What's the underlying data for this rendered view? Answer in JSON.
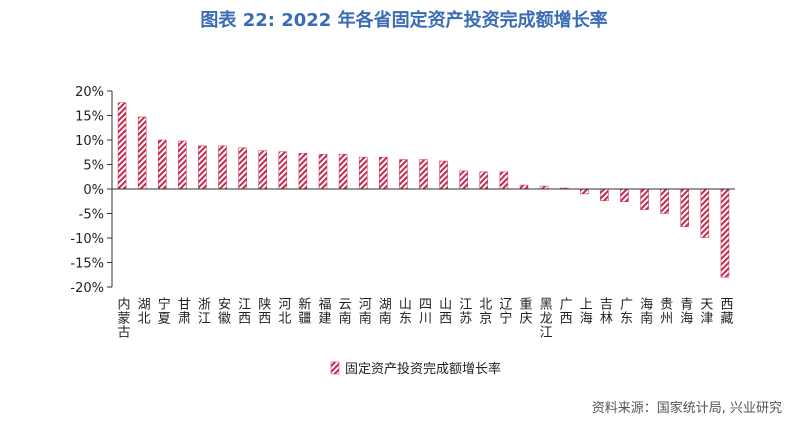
{
  "chart_data": {
    "type": "bar",
    "title": "图表 22: 2022 年各省固定资产投资完成额增长率",
    "source": "资料来源：国家统计局, 兴业研究",
    "categories": [
      "内蒙古",
      "湖北",
      "宁夏",
      "甘肃",
      "浙江",
      "安徽",
      "江西",
      "陕西",
      "河北",
      "新疆",
      "福建",
      "云南",
      "河南",
      "湖南",
      "山东",
      "四川",
      "山西",
      "江苏",
      "北京",
      "辽宁",
      "重庆",
      "黑龙江",
      "广西",
      "上海",
      "吉林",
      "广东",
      "海南",
      "贵州",
      "青海",
      "天津",
      "西藏"
    ],
    "series": [
      {
        "name": "固定资产投资完成额增长率",
        "color": "#c8284d",
        "values": [
          17.6,
          14.7,
          10.0,
          9.8,
          8.8,
          8.8,
          8.4,
          7.8,
          7.6,
          7.3,
          7.1,
          7.1,
          6.5,
          6.5,
          6.0,
          6.0,
          5.7,
          3.7,
          3.5,
          3.5,
          0.8,
          0.6,
          0.2,
          -1.0,
          -2.4,
          -2.6,
          -4.2,
          -5.0,
          -7.7,
          -9.9,
          -18.0
        ]
      }
    ],
    "ylim": [
      -20,
      20
    ],
    "yticks": [
      {
        "value": -20,
        "label": "-20%"
      },
      {
        "value": -15,
        "label": "-15%"
      },
      {
        "value": -10,
        "label": "-10%"
      },
      {
        "value": -5,
        "label": "-5%"
      },
      {
        "value": 0,
        "label": "0%"
      },
      {
        "value": 5,
        "label": "5%"
      },
      {
        "value": 10,
        "label": "10%"
      },
      {
        "value": 15,
        "label": "15%"
      },
      {
        "value": 20,
        "label": "20%"
      }
    ]
  }
}
